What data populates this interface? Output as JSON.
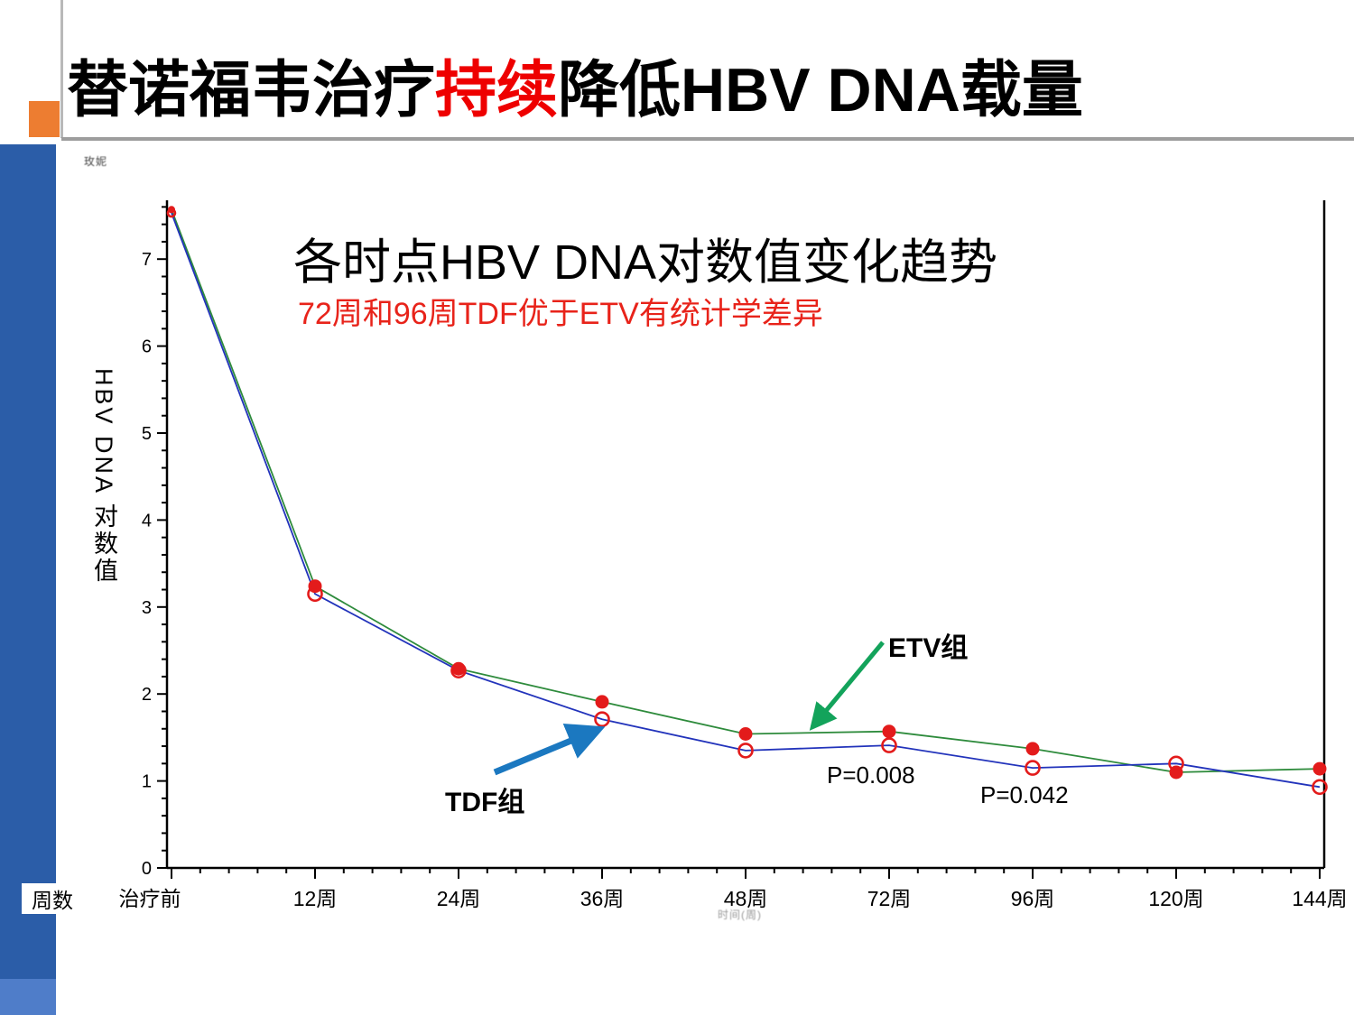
{
  "slide": {
    "title_prefix": "替诺福韦治疗",
    "title_highlight": "持续",
    "title_suffix": "降低HBV DNA载量",
    "watermark": "玫妮",
    "axis_footnote": "时间(周)"
  },
  "colors": {
    "title_highlight_red": "#ee0000",
    "subtitle_red": "#e8231a",
    "orange_accent": "#ED7D31",
    "sidebar_blue": "#2B5DA8",
    "sidebar_blue_light": "#4F7DC9",
    "divider_gray": "#9d9d9d",
    "axis_black": "#000000",
    "etv_line_green": "#2E8B3C",
    "tdf_line_blue": "#2233BB",
    "marker_red": "#E31B1B",
    "etv_arrow_green": "#13A35B",
    "tdf_arrow_blue": "#1B78C0"
  },
  "chart_data": {
    "type": "line",
    "title": "各时点HBV DNA对数值变化趋势",
    "subtitle": "72周和96周TDF优于ETV有统计学差异",
    "xlabel": "周数",
    "ylabel": "HBV DNA 对数值",
    "categories": [
      "治疗前",
      "12周",
      "24周",
      "36周",
      "48周",
      "72周",
      "96周",
      "120周",
      "144周"
    ],
    "series": [
      {
        "name": "ETV组",
        "marker": "filled-red-circle",
        "line_color": "#2E8B3C",
        "values": [
          7.57,
          3.24,
          2.29,
          1.91,
          1.54,
          1.57,
          1.37,
          1.1,
          1.14
        ]
      },
      {
        "name": "TDF组",
        "marker": "open-red-circle",
        "line_color": "#2233BB",
        "values": [
          7.53,
          3.15,
          2.27,
          1.71,
          1.35,
          1.41,
          1.15,
          1.2,
          0.93
        ]
      }
    ],
    "ylim": [
      0,
      7.7
    ],
    "yticks": [
      0,
      1,
      2,
      3,
      4,
      5,
      6,
      7
    ],
    "y_minor_step": 0.2,
    "x_minor_per_interval": 4,
    "grid": "off",
    "legend": "annotated-arrows",
    "annotations": [
      {
        "text": "P=0.008",
        "near": "72周"
      },
      {
        "text": "P=0.042",
        "near": "96周"
      }
    ]
  }
}
